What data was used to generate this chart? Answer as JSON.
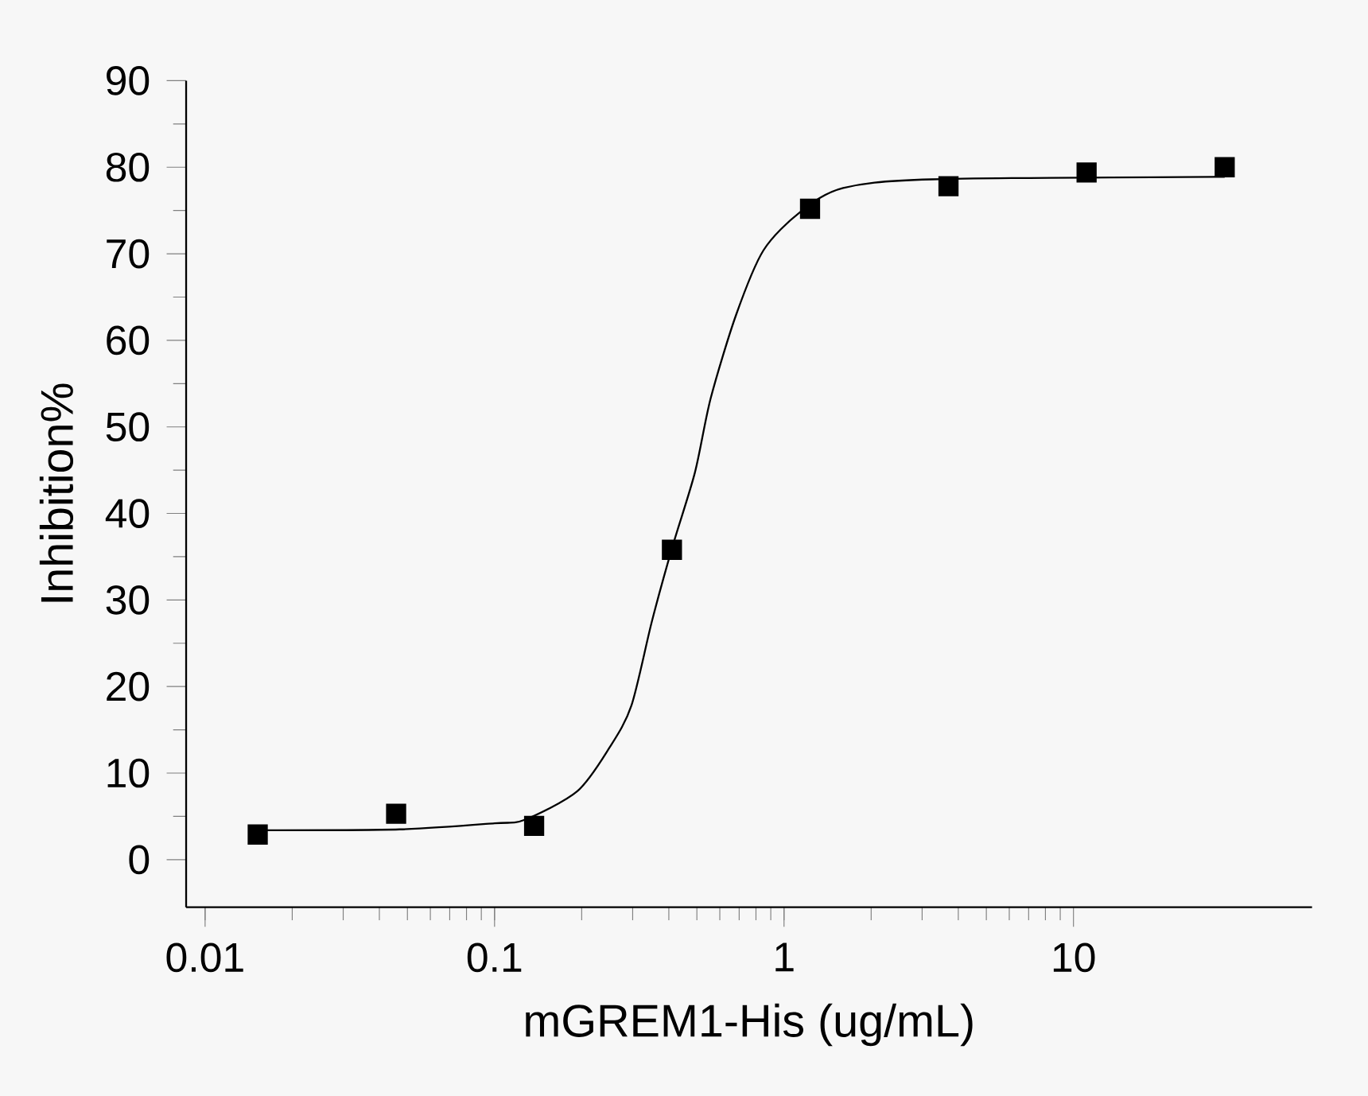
{
  "chart_data": {
    "type": "scatter",
    "xlabel": "mGREM1-His (ug/mL)",
    "ylabel": "Inhibition%",
    "log": "x",
    "xlim": [
      0.0086,
      66.7
    ],
    "xticks": [
      {
        "value": 0.01,
        "label": "0.01"
      },
      {
        "value": 0.1,
        "label": "0.1"
      },
      {
        "value": 1,
        "label": "1"
      },
      {
        "value": 10,
        "label": "10"
      }
    ],
    "ylim": [
      -5.5,
      90
    ],
    "yticks": [
      0,
      10,
      20,
      30,
      40,
      50,
      60,
      70,
      80,
      90
    ],
    "grid": false,
    "series": [
      {
        "color": "#000000",
        "marker": "square",
        "x": [
          0.0152,
          0.0457,
          0.137,
          0.41,
          1.23,
          3.7,
          11.1,
          33.3
        ],
        "values": [
          2.9,
          5.3,
          3.9,
          35.8,
          75.2,
          77.8,
          79.4,
          80.0
        ]
      },
      {
        "type": "line",
        "color": "#000000",
        "marker": "none",
        "line_style": "solid",
        "x": [
          0.015,
          0.047,
          0.1,
          0.127,
          0.193,
          0.249,
          0.297,
          0.35,
          0.412,
          0.492,
          0.558,
          0.684,
          0.849,
          1.135,
          1.6,
          3.24,
          33.3
        ],
        "values": [
          3.4,
          3.5,
          4.2,
          4.6,
          7.9,
          12.9,
          17.8,
          27.6,
          36.2,
          44.7,
          53.3,
          63.0,
          70.4,
          74.8,
          77.6,
          78.6,
          78.9
        ]
      }
    ]
  }
}
